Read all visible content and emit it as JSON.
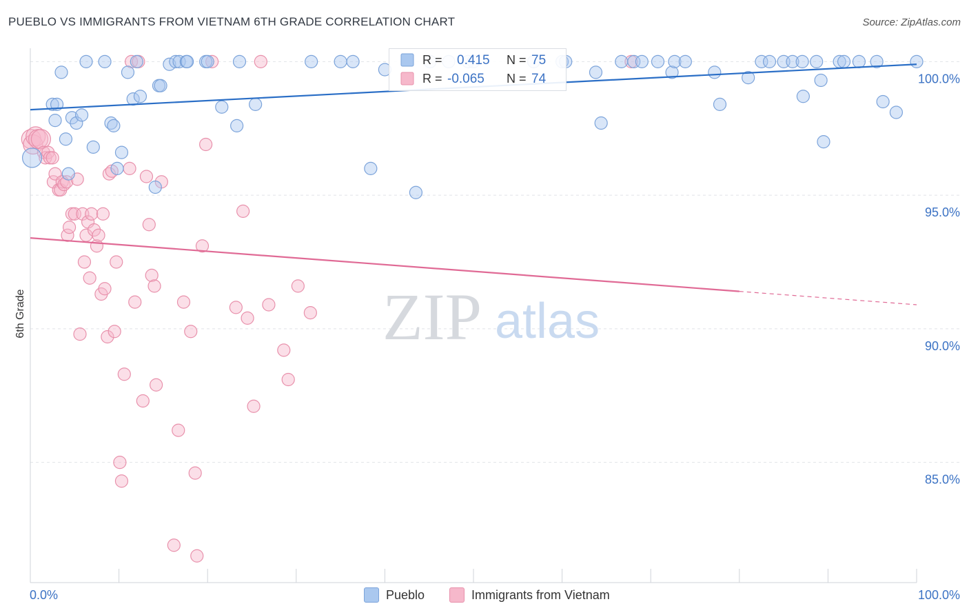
{
  "title": "PUEBLO VS IMMIGRANTS FROM VIETNAM 6TH GRADE CORRELATION CHART",
  "source": "Source: ZipAtlas.com",
  "watermark": {
    "zip": "ZIP",
    "atlas": "atlas"
  },
  "colors": {
    "blue_fill": "#aac8ef",
    "blue_stroke": "#7ba3da",
    "blue_line": "#2a6ec6",
    "blue_text": "#3b72c4",
    "pink_fill": "#f6b8cb",
    "pink_stroke": "#e890ab",
    "pink_line": "#e06a95",
    "grid": "#e1e4e8",
    "axis_text": "#3b72c4"
  },
  "legend": {
    "r_label": "R =",
    "n_label": "N =",
    "rows": [
      {
        "series": "Pueblo",
        "r": "0.415",
        "n": "75"
      },
      {
        "series": "Immigrants from Vietnam",
        "r": "-0.065",
        "n": "74"
      }
    ]
  },
  "chart_data": {
    "type": "scatter",
    "title": "PUEBLO VS IMMIGRANTS FROM VIETNAM 6TH GRADE CORRELATION CHART",
    "xlabel": "",
    "ylabel": "6th Grade",
    "xlim": [
      0,
      100
    ],
    "ylim": [
      80.5,
      100.5
    ],
    "x_tick_labels": [
      "0.0%",
      "100.0%"
    ],
    "y_ticks": [
      85,
      90,
      95,
      100
    ],
    "y_tick_labels": [
      "85.0%",
      "90.0%",
      "95.0%",
      "100.0%"
    ],
    "grid": true,
    "legend_placement": "bottom",
    "series": [
      {
        "name": "Pueblo",
        "color": "blue",
        "trend": {
          "x": [
            0,
            100
          ],
          "y": [
            98.2,
            99.9
          ],
          "dashed_from": null
        },
        "points": [
          [
            0.2,
            96.4
          ],
          [
            2.5,
            98.4
          ],
          [
            2.8,
            97.8
          ],
          [
            3.0,
            98.4
          ],
          [
            3.5,
            99.6
          ],
          [
            4.0,
            97.1
          ],
          [
            4.3,
            95.8
          ],
          [
            4.7,
            97.9
          ],
          [
            5.2,
            97.7
          ],
          [
            5.8,
            98.0
          ],
          [
            6.3,
            100.0
          ],
          [
            7.1,
            96.8
          ],
          [
            8.4,
            100.0
          ],
          [
            9.1,
            97.7
          ],
          [
            9.4,
            97.6
          ],
          [
            9.8,
            96.0
          ],
          [
            10.3,
            96.6
          ],
          [
            11.0,
            99.6
          ],
          [
            11.6,
            98.6
          ],
          [
            12.0,
            100.0
          ],
          [
            12.4,
            98.7
          ],
          [
            14.1,
            95.3
          ],
          [
            14.5,
            99.1
          ],
          [
            14.7,
            99.1
          ],
          [
            15.7,
            99.9
          ],
          [
            16.4,
            100.0
          ],
          [
            16.8,
            100.0
          ],
          [
            17.6,
            100.0
          ],
          [
            17.7,
            100.0
          ],
          [
            19.8,
            100.0
          ],
          [
            20.0,
            100.0
          ],
          [
            21.6,
            98.3
          ],
          [
            23.3,
            97.6
          ],
          [
            23.6,
            100.0
          ],
          [
            25.4,
            98.4
          ],
          [
            31.7,
            100.0
          ],
          [
            35.0,
            100.0
          ],
          [
            36.4,
            100.0
          ],
          [
            38.4,
            96.0
          ],
          [
            40.0,
            99.7
          ],
          [
            43.5,
            95.1
          ],
          [
            45.1,
            100.0
          ],
          [
            47.2,
            100.0
          ],
          [
            49.4,
            100.0
          ],
          [
            50.0,
            100.0
          ],
          [
            56.8,
            100.0
          ],
          [
            60.0,
            100.0
          ],
          [
            60.4,
            100.0
          ],
          [
            63.8,
            99.6
          ],
          [
            64.4,
            97.7
          ],
          [
            66.7,
            100.0
          ],
          [
            68.1,
            100.0
          ],
          [
            69.0,
            100.0
          ],
          [
            70.8,
            100.0
          ],
          [
            72.4,
            99.6
          ],
          [
            72.7,
            100.0
          ],
          [
            73.9,
            100.0
          ],
          [
            77.2,
            99.6
          ],
          [
            77.8,
            98.4
          ],
          [
            81.0,
            99.4
          ],
          [
            82.5,
            100.0
          ],
          [
            83.4,
            100.0
          ],
          [
            85.0,
            100.0
          ],
          [
            86.0,
            100.0
          ],
          [
            87.1,
            100.0
          ],
          [
            87.2,
            98.7
          ],
          [
            88.7,
            100.0
          ],
          [
            89.2,
            99.3
          ],
          [
            89.5,
            97.0
          ],
          [
            91.3,
            100.0
          ],
          [
            91.8,
            100.0
          ],
          [
            93.5,
            100.0
          ],
          [
            95.5,
            100.0
          ],
          [
            96.2,
            98.5
          ],
          [
            97.7,
            98.1
          ],
          [
            100.0,
            100.0
          ]
        ]
      },
      {
        "name": "Immigrants from Vietnam",
        "color": "pink",
        "trend": {
          "x": [
            0,
            100
          ],
          "y": [
            93.4,
            90.9
          ],
          "dashed_from": 80
        },
        "points": [
          [
            0.1,
            97.1
          ],
          [
            0.3,
            96.9
          ],
          [
            0.6,
            97.2
          ],
          [
            0.9,
            97.1
          ],
          [
            1.2,
            97.1
          ],
          [
            1.5,
            96.6
          ],
          [
            1.7,
            96.4
          ],
          [
            2.0,
            96.6
          ],
          [
            2.2,
            96.4
          ],
          [
            2.5,
            96.4
          ],
          [
            2.6,
            95.5
          ],
          [
            2.8,
            95.8
          ],
          [
            3.2,
            95.2
          ],
          [
            3.4,
            95.2
          ],
          [
            3.6,
            95.5
          ],
          [
            3.8,
            95.4
          ],
          [
            4.1,
            95.5
          ],
          [
            4.2,
            93.5
          ],
          [
            4.4,
            93.8
          ],
          [
            4.7,
            94.3
          ],
          [
            5.0,
            94.3
          ],
          [
            5.3,
            95.6
          ],
          [
            5.6,
            89.8
          ],
          [
            5.9,
            94.3
          ],
          [
            6.1,
            92.5
          ],
          [
            6.3,
            93.5
          ],
          [
            6.5,
            94.0
          ],
          [
            6.7,
            91.9
          ],
          [
            6.9,
            94.3
          ],
          [
            7.2,
            93.7
          ],
          [
            7.5,
            93.1
          ],
          [
            7.7,
            93.5
          ],
          [
            8.0,
            91.3
          ],
          [
            8.2,
            94.3
          ],
          [
            8.4,
            91.5
          ],
          [
            8.7,
            89.7
          ],
          [
            8.9,
            95.8
          ],
          [
            9.2,
            95.9
          ],
          [
            9.5,
            89.9
          ],
          [
            9.7,
            92.5
          ],
          [
            10.1,
            85.0
          ],
          [
            10.3,
            84.3
          ],
          [
            10.6,
            88.3
          ],
          [
            11.2,
            96.0
          ],
          [
            11.4,
            100.0
          ],
          [
            11.8,
            91.0
          ],
          [
            12.2,
            100.0
          ],
          [
            12.7,
            87.3
          ],
          [
            13.1,
            95.7
          ],
          [
            13.4,
            93.9
          ],
          [
            13.7,
            92.0
          ],
          [
            14.0,
            91.6
          ],
          [
            14.2,
            87.9
          ],
          [
            14.8,
            95.5
          ],
          [
            16.2,
            81.9
          ],
          [
            16.7,
            86.2
          ],
          [
            17.3,
            91.0
          ],
          [
            18.1,
            89.9
          ],
          [
            18.6,
            84.6
          ],
          [
            18.8,
            81.5
          ],
          [
            19.4,
            93.1
          ],
          [
            19.8,
            96.9
          ],
          [
            20.5,
            100.0
          ],
          [
            23.2,
            90.8
          ],
          [
            24.0,
            94.4
          ],
          [
            24.5,
            90.4
          ],
          [
            25.2,
            87.1
          ],
          [
            26.0,
            100.0
          ],
          [
            26.9,
            90.9
          ],
          [
            28.6,
            89.2
          ],
          [
            29.1,
            88.1
          ],
          [
            30.2,
            91.6
          ],
          [
            31.6,
            90.6
          ],
          [
            67.8,
            100.0
          ]
        ]
      }
    ]
  }
}
